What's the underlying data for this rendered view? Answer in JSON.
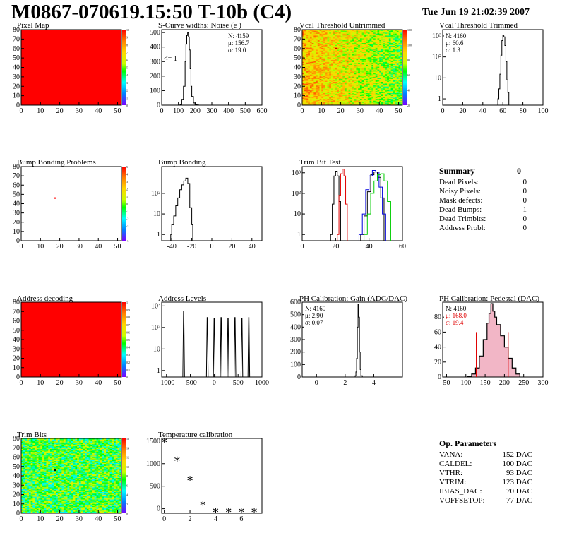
{
  "page": {
    "title": "M0867-070619.15:50 T-10b (C4)",
    "date": "Tue Jun 19 21:02:39 2007"
  },
  "colors": {
    "line_black": "#000000",
    "line_red": "#e00000",
    "line_blue": "#0000dd",
    "line_green": "#00cc00",
    "map_red": "#ff0000",
    "fill_pink": "#f2b6c6"
  },
  "color_scale": {
    "pixel_map": [
      "10",
      "9",
      "8",
      "7",
      "6",
      "5",
      "4",
      "3",
      "2",
      "1",
      "0"
    ],
    "bump_bonding": [
      "5",
      "4",
      "3",
      "2",
      "1",
      "0",
      "-1",
      "-2",
      "-3",
      "-4",
      "-5"
    ],
    "address_decoding": [
      "1",
      "0.9",
      "0.8",
      "0.7",
      "0.6",
      "0.5",
      "0.4",
      "0.3",
      "0.2",
      "0.1",
      "0"
    ],
    "vcal_untrimmed": [
      "120",
      "100",
      "80",
      "60",
      "40",
      "20"
    ],
    "trim_bits": [
      "16",
      "14",
      "12",
      "10",
      "8",
      "6",
      "4",
      "2",
      "0"
    ]
  },
  "summary": {
    "title": "Summary",
    "value": "0",
    "rows": [
      {
        "label": "Dead Pixels:",
        "value": "0"
      },
      {
        "label": "Noisy Pixels:",
        "value": "0"
      },
      {
        "label": "Mask defects:",
        "value": "0"
      },
      {
        "label": "Dead Bumps:",
        "value": "1"
      },
      {
        "label": "Dead Trimbits:",
        "value": "0"
      },
      {
        "label": "Address Probl:",
        "value": "0"
      }
    ]
  },
  "op_params": {
    "title": "Op. Parameters",
    "rows": [
      {
        "label": "VANA:",
        "value": "152 DAC"
      },
      {
        "label": "CALDEL:",
        "value": "100 DAC"
      },
      {
        "label": "VTHR:",
        "value": "93 DAC"
      },
      {
        "label": "VTRIM:",
        "value": "123 DAC"
      },
      {
        "label": "IBIAS_DAC:",
        "value": "70 DAC"
      },
      {
        "label": "VOFFSETOP:",
        "value": "77 DAC"
      }
    ]
  },
  "chart_data": [
    {
      "id": "pixel_map",
      "type": "heatmap",
      "title": "Pixel Map",
      "xlim": [
        0,
        52
      ],
      "ylim": [
        0,
        80
      ],
      "xticks": [
        "0",
        "10",
        "20",
        "30",
        "40",
        "50"
      ],
      "yticks": [
        "0",
        "10",
        "20",
        "30",
        "40",
        "50",
        "60",
        "70",
        "80"
      ],
      "zlim": [
        0,
        10
      ],
      "uniform_value": 10
    },
    {
      "id": "scurve",
      "type": "line",
      "title": "S-Curve widths: Noise (e )",
      "xlim": [
        0,
        600
      ],
      "ylim": [
        0,
        520
      ],
      "xticks": [
        "0",
        "100",
        "200",
        "300",
        "400",
        "500",
        "600"
      ],
      "yticks": [
        "0",
        "100",
        "200",
        "300",
        "400",
        "500"
      ],
      "stats": [
        "N: 4159",
        "μ: 156.7",
        "σ: 19.0"
      ],
      "annotation": "<= 1",
      "x": [
        100,
        110,
        120,
        130,
        140,
        145,
        150,
        155,
        160,
        165,
        170,
        175,
        180,
        190,
        200,
        210,
        220
      ],
      "y": [
        0,
        5,
        40,
        130,
        300,
        420,
        480,
        500,
        470,
        380,
        250,
        130,
        60,
        15,
        5,
        2,
        0
      ]
    },
    {
      "id": "vcal_untrimmed",
      "type": "heatmap",
      "title": "Vcal Threshold Untrimmed",
      "xlim": [
        0,
        52
      ],
      "ylim": [
        0,
        80
      ],
      "xticks": [
        "0",
        "10",
        "20",
        "30",
        "40",
        "50"
      ],
      "yticks": [
        "0",
        "10",
        "20",
        "30",
        "40",
        "50",
        "60",
        "70",
        "80"
      ],
      "zlim": [
        0,
        130
      ]
    },
    {
      "id": "vcal_trimmed",
      "type": "line",
      "title": "Vcal Threshold Trimmed",
      "log_y": true,
      "xlim": [
        0,
        100
      ],
      "ylim": [
        0.5,
        2000
      ],
      "xticks": [
        "0",
        "20",
        "40",
        "60",
        "80",
        "100"
      ],
      "yticks": [
        "1",
        "10",
        "10²",
        "10³"
      ],
      "stats": [
        "N: 4160",
        "μ: 60.6",
        "σ:  1.3"
      ],
      "x": [
        55,
        56,
        57,
        58,
        59,
        60,
        61,
        62,
        63,
        64,
        65,
        66
      ],
      "y": [
        1,
        3,
        15,
        120,
        600,
        1100,
        900,
        350,
        60,
        8,
        2,
        1
      ]
    },
    {
      "id": "bump_map",
      "type": "heatmap",
      "title": "Bump Bonding Problems",
      "xlim": [
        0,
        52
      ],
      "ylim": [
        0,
        80
      ],
      "xticks": [
        "0",
        "10",
        "20",
        "30",
        "40",
        "50"
      ],
      "yticks": [
        "0",
        "10",
        "20",
        "30",
        "40",
        "50",
        "60",
        "70",
        "80"
      ],
      "zlim": [
        -5,
        5
      ],
      "points": [
        {
          "x": 17,
          "y": 46
        }
      ]
    },
    {
      "id": "bump_bonding",
      "type": "line",
      "title": "Bump Bonding",
      "log_y": true,
      "xlim": [
        -50,
        50
      ],
      "ylim": [
        0.5,
        2000
      ],
      "xticks": [
        "-40",
        "-20",
        "0",
        "20",
        "40"
      ],
      "yticks": [
        "1",
        "10",
        "10²"
      ],
      "x": [
        -41,
        -40,
        -38,
        -36,
        -34,
        -32,
        -30,
        -28,
        -26,
        -24,
        -22,
        -20,
        -19
      ],
      "y": [
        1,
        3,
        8,
        25,
        60,
        150,
        260,
        400,
        550,
        300,
        20,
        3,
        1
      ]
    },
    {
      "id": "trim_bit_test",
      "type": "line",
      "title": "Trim Bit Test",
      "log_y": true,
      "xlim": [
        0,
        60
      ],
      "ylim": [
        0.5,
        2000
      ],
      "xticks": [
        "0",
        "20",
        "40",
        "60"
      ],
      "yticks": [
        "1",
        "10",
        "10²",
        "10³"
      ],
      "series": [
        {
          "color": "black",
          "x": [
            17,
            18,
            19,
            20,
            21,
            22,
            23
          ],
          "y": [
            1,
            30,
            700,
            1200,
            700,
            40,
            1
          ]
        },
        {
          "color": "red",
          "x": [
            21,
            22,
            23,
            24,
            25,
            26,
            27
          ],
          "y": [
            1,
            80,
            900,
            1500,
            700,
            30,
            1
          ]
        },
        {
          "color": "black",
          "x": [
            35,
            37,
            39,
            41,
            43,
            45,
            47,
            49
          ],
          "y": [
            1,
            8,
            120,
            800,
            1100,
            600,
            60,
            1
          ]
        },
        {
          "color": "blue",
          "x": [
            34,
            36,
            38,
            40,
            42,
            44,
            46,
            48,
            50
          ],
          "y": [
            1,
            10,
            150,
            700,
            1300,
            1100,
            200,
            10,
            1
          ]
        },
        {
          "color": "green",
          "x": [
            37,
            39,
            41,
            43,
            45,
            47,
            49,
            51,
            53
          ],
          "y": [
            1,
            10,
            100,
            400,
            800,
            900,
            400,
            40,
            1
          ]
        }
      ]
    },
    {
      "id": "address_decoding",
      "type": "heatmap",
      "title": "Address decoding",
      "xlim": [
        0,
        52
      ],
      "ylim": [
        0,
        80
      ],
      "xticks": [
        "0",
        "10",
        "20",
        "30",
        "40",
        "50"
      ],
      "yticks": [
        "0",
        "10",
        "20",
        "30",
        "40",
        "50",
        "60",
        "70",
        "80"
      ],
      "zlim": [
        0,
        1
      ],
      "uniform_value": 1
    },
    {
      "id": "address_levels",
      "type": "line",
      "title": "Address Levels",
      "log_y": true,
      "xlim": [
        -1100,
        1000
      ],
      "ylim": [
        0.5,
        1500
      ],
      "xticks": [
        "-1000",
        "-500",
        "0",
        "500",
        "1000"
      ],
      "yticks": [
        "1",
        "10",
        "10²",
        "10³"
      ],
      "peaks": [
        -640,
        -145,
        0,
        145,
        290,
        435,
        580,
        725
      ]
    },
    {
      "id": "ph_gain",
      "type": "line",
      "title": "PH Calibration: Gain (ADC/DAC)",
      "xlim": [
        -1,
        6
      ],
      "ylim": [
        0,
        600
      ],
      "xticks": [
        "0",
        "2",
        "4"
      ],
      "yticks": [
        "0",
        "100",
        "200",
        "300",
        "400",
        "500",
        "600"
      ],
      "stats": [
        "N: 4160",
        "μ: 2.90",
        "σ: 0.07"
      ],
      "x": [
        2.6,
        2.7,
        2.75,
        2.8,
        2.85,
        2.9,
        2.95,
        3.0,
        3.05,
        3.1,
        3.2
      ],
      "y": [
        0,
        10,
        40,
        150,
        400,
        580,
        480,
        200,
        60,
        10,
        0
      ]
    },
    {
      "id": "ph_pedestal",
      "type": "line",
      "title": "PH Calibration: Pedestal (DAC)",
      "xlim": [
        40,
        300
      ],
      "ylim": [
        0,
        100
      ],
      "xticks": [
        "50",
        "100",
        "150",
        "200",
        "250",
        "300"
      ],
      "yticks": [
        "0",
        "20",
        "40",
        "60",
        "80"
      ],
      "stats": [
        "N: 4160",
        "μ: 168.0",
        "σ: 19.4"
      ],
      "red_lines": [
        127,
        210
      ],
      "x": [
        105,
        115,
        125,
        135,
        145,
        155,
        160,
        165,
        170,
        175,
        180,
        190,
        200,
        210,
        220,
        230,
        240
      ],
      "y": [
        1,
        4,
        12,
        28,
        50,
        72,
        85,
        98,
        88,
        80,
        70,
        55,
        40,
        25,
        12,
        4,
        1
      ]
    },
    {
      "id": "trim_bits",
      "type": "heatmap",
      "title": "Trim Bits",
      "xlim": [
        0,
        52
      ],
      "ylim": [
        0,
        80
      ],
      "xticks": [
        "0",
        "10",
        "20",
        "30",
        "40",
        "50"
      ],
      "yticks": [
        "0",
        "10",
        "20",
        "30",
        "40",
        "50",
        "60",
        "70",
        "80"
      ],
      "zlim": [
        0,
        16
      ]
    },
    {
      "id": "temperature",
      "type": "scatter",
      "title": "Temperature calibration",
      "xlim": [
        -0.2,
        7.6
      ],
      "ylim": [
        -100,
        1560
      ],
      "xticks": [
        "0",
        "2",
        "4",
        "6"
      ],
      "yticks": [
        "0",
        "500",
        "1000",
        "1500"
      ],
      "x": [
        0,
        1,
        2,
        3,
        4,
        5,
        6,
        7
      ],
      "y": [
        1510,
        1100,
        670,
        120,
        -40,
        -40,
        -40,
        -40
      ]
    }
  ]
}
